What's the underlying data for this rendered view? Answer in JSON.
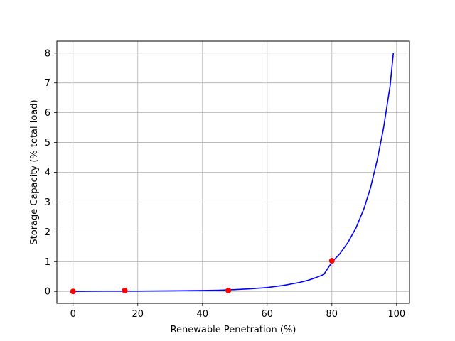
{
  "chart_data": {
    "type": "line",
    "title": "",
    "xlabel": "Renewable Penetration (%)",
    "ylabel": "Storage Capacity (% total load)",
    "xlim": [
      -5,
      104
    ],
    "ylim": [
      -0.4,
      8.4
    ],
    "x_ticks": [
      0,
      20,
      40,
      60,
      80,
      100
    ],
    "y_ticks": [
      0,
      1,
      2,
      3,
      4,
      5,
      6,
      7,
      8
    ],
    "grid": true,
    "series": [
      {
        "kind": "line",
        "color": "#0000ff",
        "x": [
          0,
          10,
          20,
          30,
          40,
          45,
          50,
          55,
          60,
          65,
          70,
          72.5,
          75,
          77.5,
          80,
          82.5,
          85,
          87.5,
          90,
          92,
          94,
          96,
          98,
          99
        ],
        "y": [
          0.0,
          0.01,
          0.01,
          0.02,
          0.03,
          0.04,
          0.06,
          0.09,
          0.13,
          0.2,
          0.3,
          0.37,
          0.46,
          0.57,
          0.98,
          1.27,
          1.65,
          2.14,
          2.8,
          3.5,
          4.4,
          5.5,
          6.9,
          8.0
        ]
      },
      {
        "kind": "scatter",
        "color": "#ff0000",
        "x": [
          0,
          16,
          48,
          80
        ],
        "y": [
          0.0,
          0.03,
          0.03,
          1.03
        ]
      }
    ]
  }
}
